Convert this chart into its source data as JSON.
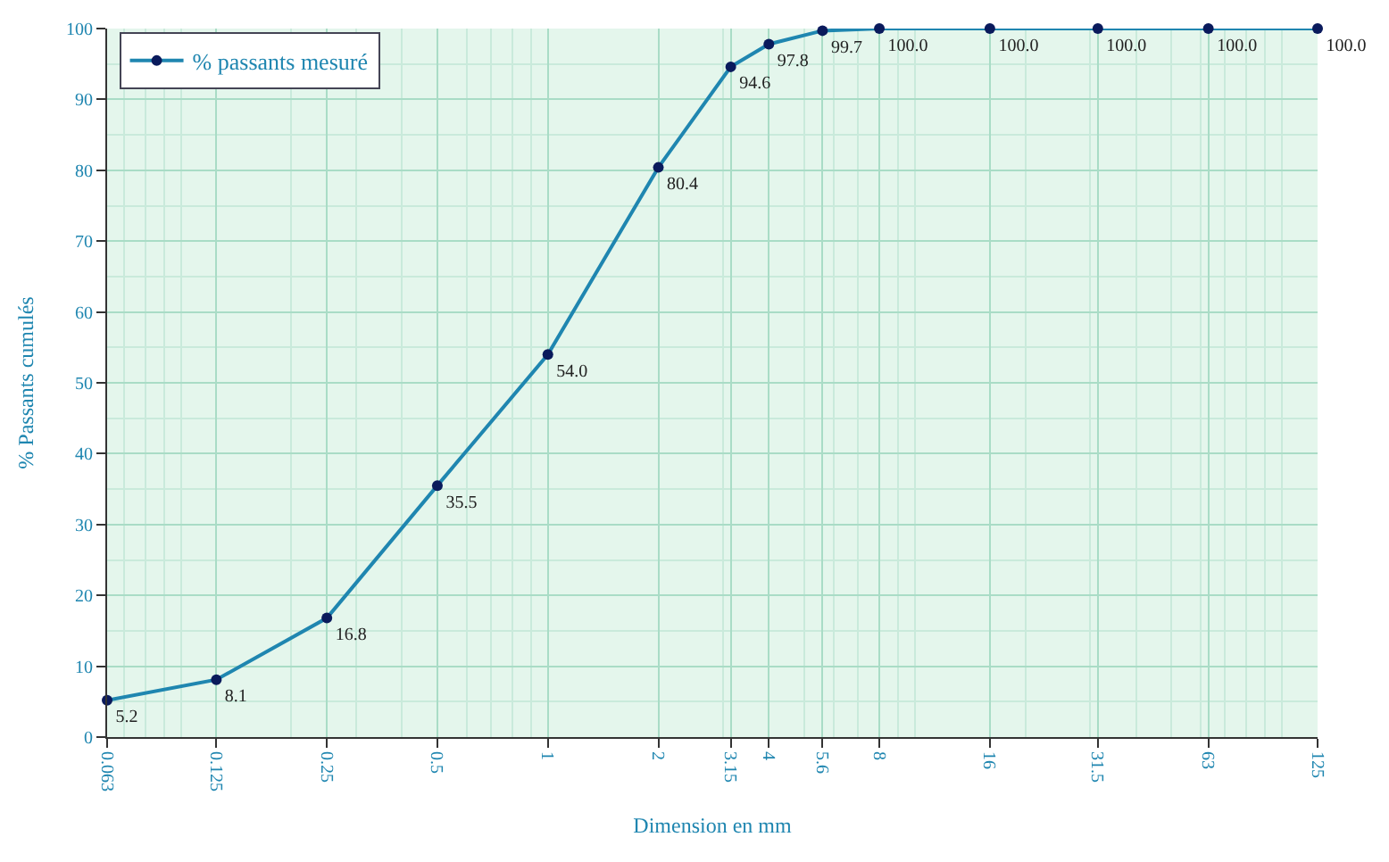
{
  "chart_data": {
    "type": "line",
    "xlabel": "Dimension en mm",
    "ylabel": "% Passants cumulés",
    "x": [
      0.063,
      0.125,
      0.25,
      0.5,
      1,
      2,
      3.15,
      4,
      5.6,
      8,
      16,
      31.5,
      63,
      125
    ],
    "series": [
      {
        "name": "% passants mesuré",
        "color": "#1f86b0",
        "values": [
          5.2,
          8.1,
          16.8,
          35.5,
          54.0,
          80.4,
          94.6,
          97.8,
          99.7,
          100.0,
          100.0,
          100.0,
          100.0,
          100.0
        ],
        "value_labels": [
          "5.2",
          "8.1",
          "16.8",
          "35.5",
          "54.0",
          "80.4",
          "94.6",
          "97.8",
          "99.7",
          "100.0",
          "100.0",
          "100.0",
          "100.0",
          "100.0"
        ]
      }
    ],
    "log": "x",
    "xlim": [
      0.063,
      125
    ],
    "xticks": [
      0.063,
      0.125,
      0.25,
      0.5,
      1,
      2,
      3.15,
      4,
      5.6,
      8,
      16,
      31.5,
      63,
      125
    ],
    "ylim": [
      0,
      100
    ],
    "yticks": [
      0,
      10,
      20,
      30,
      40,
      50,
      60,
      70,
      80,
      90,
      100
    ],
    "grid": true,
    "legend": "top left",
    "marker": "circle",
    "line_style": "solid"
  }
}
